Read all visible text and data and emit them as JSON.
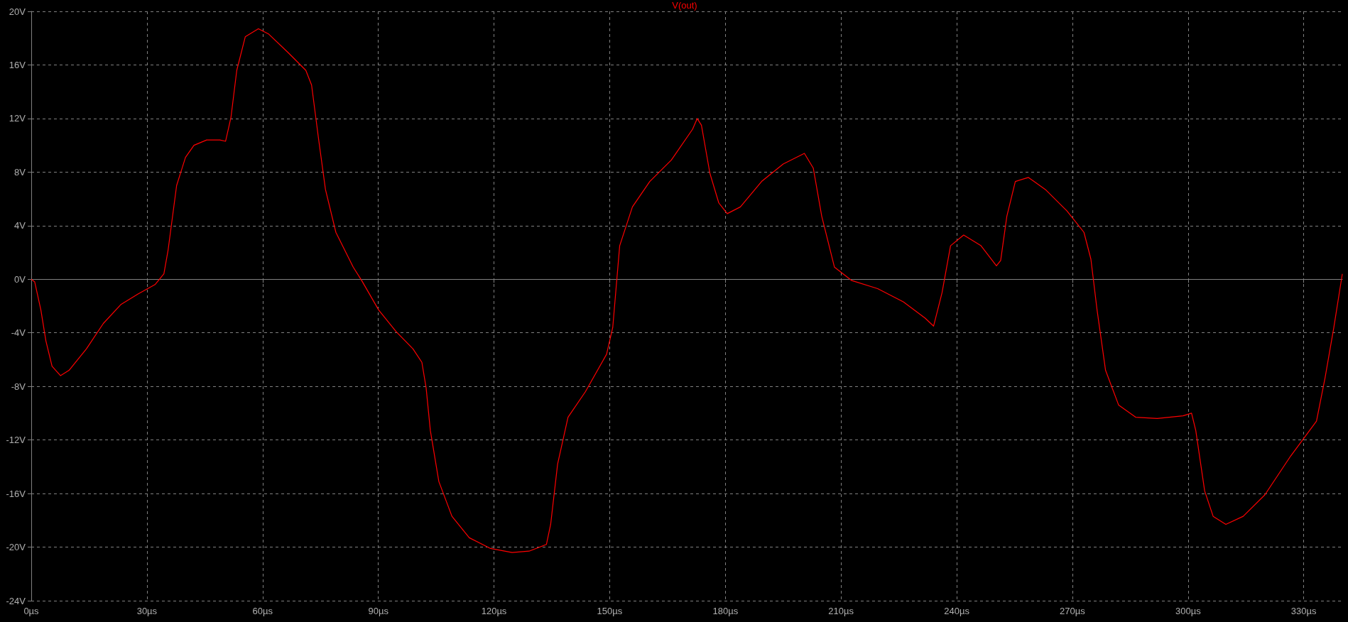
{
  "chart_data": {
    "type": "line",
    "legend": "top",
    "grid": true,
    "marker": "none",
    "line_style": "solid",
    "xlim": [
      0,
      340
    ],
    "ylim": [
      -24,
      20
    ],
    "xticks": [
      {
        "value": 0,
        "label": "0µs"
      },
      {
        "value": 30,
        "label": "30µs"
      },
      {
        "value": 60,
        "label": "60µs"
      },
      {
        "value": 90,
        "label": "90µs"
      },
      {
        "value": 120,
        "label": "120µs"
      },
      {
        "value": 150,
        "label": "150µs"
      },
      {
        "value": 180,
        "label": "180µs"
      },
      {
        "value": 210,
        "label": "210µs"
      },
      {
        "value": 240,
        "label": "240µs"
      },
      {
        "value": 270,
        "label": "270µs"
      },
      {
        "value": 300,
        "label": "300µs"
      },
      {
        "value": 330,
        "label": "330µs"
      }
    ],
    "yticks": [
      {
        "value": -24,
        "label": "-24V"
      },
      {
        "value": -20,
        "label": "-20V"
      },
      {
        "value": -16,
        "label": "-16V"
      },
      {
        "value": -12,
        "label": "-12V"
      },
      {
        "value": -8,
        "label": "-8V"
      },
      {
        "value": -4,
        "label": "-4V"
      },
      {
        "value": 0,
        "label": "0V"
      },
      {
        "value": 4,
        "label": "4V"
      },
      {
        "value": 8,
        "label": "8V"
      },
      {
        "value": 12,
        "label": "12V"
      },
      {
        "value": 16,
        "label": "16V"
      },
      {
        "value": 20,
        "label": "20V"
      }
    ],
    "x": [
      0,
      0.9,
      2.5,
      3.8,
      5.4,
      7.6,
      9.8,
      14.3,
      18.7,
      23.2,
      27.7,
      32.1,
      34.4,
      35.5,
      37.7,
      40,
      42.2,
      45.5,
      48.9,
      50.4,
      51.8,
      53.3,
      55.5,
      58.9,
      61.6,
      66.7,
      71.2,
      72.7,
      74.5,
      76.3,
      79,
      83.5,
      85.7,
      90.1,
      94.6,
      99,
      101.3,
      102.4,
      103.5,
      105.7,
      109.1,
      113.6,
      119.1,
      124.7,
      129.1,
      133.6,
      134.7,
      136.5,
      139.2,
      143.7,
      149.2,
      150.8,
      152.6,
      155.9,
      160.4,
      166,
      171.5,
      172.7,
      173.8,
      176,
      178.3,
      180.5,
      183.9,
      189.4,
      195,
      200.5,
      202.8,
      205,
      208.3,
      212.8,
      219.5,
      226.2,
      231.8,
      234,
      236.2,
      238.4,
      241.8,
      246.3,
      250.3,
      251.4,
      253,
      255.2,
      258.6,
      263,
      268.6,
      273,
      274.8,
      276.4,
      278.6,
      282,
      286.4,
      292,
      298.7,
      300.9,
      302,
      304.3,
      306.5,
      309.8,
      314.3,
      319.9,
      326.6,
      333.3,
      335.5,
      337.8,
      340
    ],
    "series": [
      {
        "name": "V(out)",
        "color": "#ff0000",
        "values": [
          0,
          -0.2,
          -2.3,
          -4.6,
          -6.5,
          -7.2,
          -6.8,
          -5.2,
          -3.3,
          -1.9,
          -1.1,
          -0.4,
          0.4,
          2.2,
          7,
          9.1,
          10,
          10.4,
          10.4,
          10.3,
          12.1,
          15.6,
          18.1,
          18.7,
          18.3,
          16.9,
          15.6,
          14.5,
          10.5,
          6.7,
          3.5,
          0.9,
          -0.1,
          -2.3,
          -3.9,
          -5.2,
          -6.2,
          -8.1,
          -11.3,
          -15.1,
          -17.7,
          -19.3,
          -20.1,
          -20.4,
          -20.3,
          -19.8,
          -18.3,
          -13.8,
          -10.3,
          -8.4,
          -5.6,
          -3.6,
          2.5,
          5.4,
          7.3,
          8.9,
          11.2,
          12,
          11.5,
          7.9,
          5.7,
          4.9,
          5.4,
          7.3,
          8.6,
          9.4,
          8.3,
          4.7,
          0.9,
          -0.1,
          -0.7,
          -1.7,
          -2.9,
          -3.5,
          -1,
          2.5,
          3.3,
          2.5,
          1,
          1.4,
          4.7,
          7.3,
          7.6,
          6.7,
          5.1,
          3.5,
          1.5,
          -2.3,
          -6.8,
          -9.4,
          -10.3,
          -10.4,
          -10.2,
          -10,
          -11.3,
          -15.8,
          -17.7,
          -18.3,
          -17.7,
          -16.1,
          -13.2,
          -10.6,
          -7.4,
          -3.6,
          0.4
        ]
      }
    ]
  }
}
